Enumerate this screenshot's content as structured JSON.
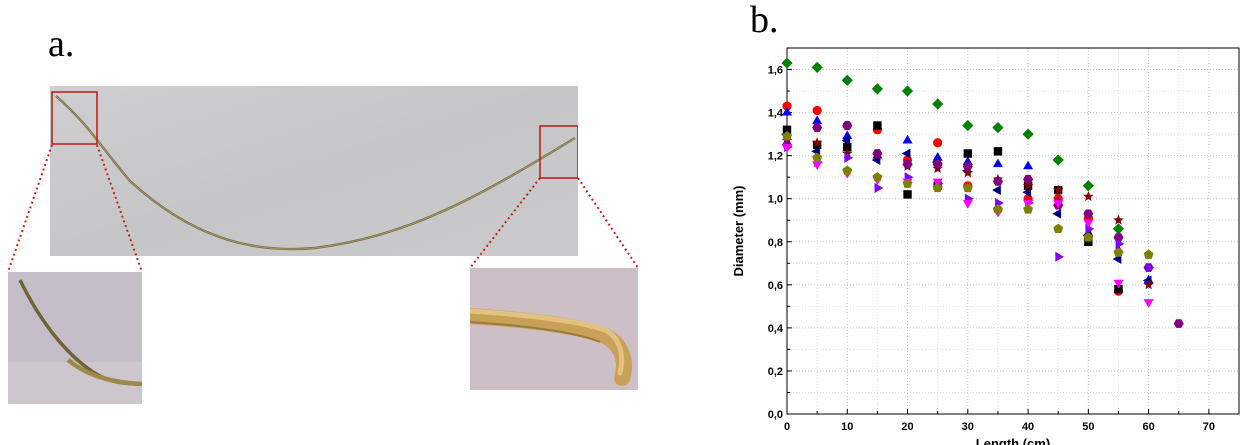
{
  "panels": {
    "a": "a.",
    "b": "b."
  },
  "colors": {
    "highlight_box": "#c0231c",
    "photo_bg": "#c9c9cb",
    "grass": "#8a7d4e"
  },
  "chart_data": {
    "type": "scatter",
    "xlabel": "Length (cm)",
    "ylabel": "Diameter (mm)",
    "xlim": [
      0,
      75
    ],
    "ylim": [
      0,
      1.7
    ],
    "x_ticks": [
      "0",
      "10",
      "20",
      "30",
      "40",
      "50",
      "60",
      "70"
    ],
    "y_ticks": [
      "0,0",
      "0,2",
      "0,4",
      "0,6",
      "0,8",
      "1,0",
      "1,2",
      "1,4",
      "1,6"
    ],
    "grid": true,
    "series": [
      {
        "color": "#008000",
        "marker": "diamond",
        "x": [
          0,
          5,
          10,
          15,
          20,
          25,
          30,
          35,
          40,
          45,
          50,
          55
        ],
        "y": [
          1.63,
          1.61,
          1.55,
          1.51,
          1.5,
          1.44,
          1.34,
          1.33,
          1.3,
          1.18,
          1.06,
          0.86
        ]
      },
      {
        "color": "#ff0000",
        "marker": "circle",
        "x": [
          0,
          5,
          10,
          15,
          20,
          25,
          30,
          35,
          40,
          45,
          50,
          55
        ],
        "y": [
          1.43,
          1.41,
          1.34,
          1.32,
          1.18,
          1.26,
          1.06,
          0.95,
          1.0,
          1.0,
          0.91,
          0.57
        ]
      },
      {
        "color": "#000000",
        "marker": "square",
        "x": [
          0,
          5,
          10,
          15,
          20,
          25,
          30,
          35,
          40,
          45,
          50,
          55
        ],
        "y": [
          1.32,
          1.25,
          1.24,
          1.34,
          1.02,
          1.06,
          1.21,
          1.22,
          1.06,
          1.04,
          0.8,
          0.58
        ]
      },
      {
        "color": "#0000ff",
        "marker": "triangle-up",
        "x": [
          0,
          5,
          10,
          15,
          20,
          25,
          30,
          35,
          40,
          45,
          50,
          55,
          60
        ],
        "y": [
          1.4,
          1.36,
          1.29,
          1.2,
          1.27,
          1.19,
          1.17,
          1.16,
          1.15,
          0.98,
          0.84,
          0.76,
          0.62
        ]
      },
      {
        "color": "#00007f",
        "marker": "triangle-left",
        "x": [
          0,
          5,
          10,
          15,
          20,
          25,
          30,
          35,
          40,
          45,
          50,
          55,
          60
        ],
        "y": [
          1.3,
          1.22,
          1.27,
          1.18,
          1.21,
          1.17,
          1.13,
          1.04,
          1.03,
          0.93,
          0.83,
          0.72,
          0.62
        ]
      },
      {
        "color": "#800000",
        "marker": "star",
        "x": [
          0,
          5,
          10,
          15,
          20,
          25,
          30,
          35,
          40,
          45,
          50,
          55,
          60
        ],
        "y": [
          1.27,
          1.26,
          1.21,
          1.2,
          1.15,
          1.14,
          1.12,
          1.09,
          1.06,
          1.04,
          1.01,
          0.9,
          0.6
        ]
      },
      {
        "color": "#800080",
        "marker": "hexagon",
        "x": [
          0,
          5,
          10,
          15,
          20,
          25,
          30,
          35,
          40,
          45,
          50,
          55,
          60,
          65
        ],
        "y": [
          1.25,
          1.33,
          1.34,
          1.21,
          1.16,
          1.16,
          1.15,
          1.08,
          1.09,
          0.97,
          0.93,
          0.82,
          0.68,
          0.42
        ]
      },
      {
        "color": "#8000ff",
        "marker": "triangle-right",
        "x": [
          0,
          5,
          10,
          15,
          20,
          25,
          30,
          35,
          40,
          45,
          50,
          55,
          60
        ],
        "y": [
          1.24,
          1.17,
          1.19,
          1.05,
          1.1,
          1.07,
          1.0,
          0.98,
          0.98,
          0.73,
          0.86,
          0.79,
          0.68
        ]
      },
      {
        "color": "#ff00ff",
        "marker": "triangle-down",
        "x": [
          0,
          5,
          10,
          15,
          20,
          25,
          30,
          35,
          40,
          45,
          50,
          55,
          60
        ],
        "y": [
          1.24,
          1.16,
          1.12,
          1.09,
          1.08,
          1.08,
          0.98,
          0.94,
          0.98,
          0.98,
          0.89,
          0.61,
          0.52
        ]
      },
      {
        "color": "#808000",
        "marker": "pentagon",
        "x": [
          0,
          5,
          10,
          15,
          20,
          25,
          30,
          35,
          40,
          45,
          50,
          55,
          60
        ],
        "y": [
          1.29,
          1.19,
          1.13,
          1.1,
          1.07,
          1.05,
          1.05,
          0.95,
          0.95,
          0.86,
          0.82,
          0.75,
          0.74
        ]
      }
    ]
  }
}
